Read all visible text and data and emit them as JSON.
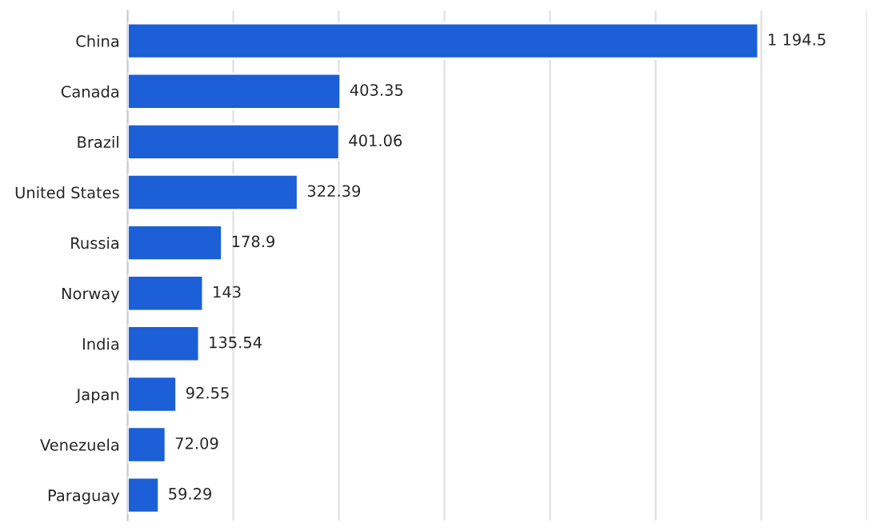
{
  "chart_data": {
    "type": "bar",
    "orientation": "horizontal",
    "categories": [
      "China",
      "Canada",
      "Brazil",
      "United States",
      "Russia",
      "Norway",
      "India",
      "Japan",
      "Venezuela",
      "Paraguay"
    ],
    "values": [
      1194.5,
      403.35,
      401.06,
      322.39,
      178.9,
      143,
      135.54,
      92.55,
      72.09,
      59.29
    ],
    "value_labels": [
      "1 194.5",
      "403.35",
      "401.06",
      "322.39",
      "178.9",
      "143",
      "135.54",
      "92.55",
      "72.09",
      "59.29"
    ],
    "color": "#1c5fd6",
    "xlim": [
      0,
      1400
    ],
    "xticks": [
      {
        "value": 0,
        "label": null
      },
      {
        "value": 200,
        "label": null
      },
      {
        "value": 400,
        "label": null
      },
      {
        "value": 600,
        "label": null
      },
      {
        "value": 800,
        "label": null
      },
      {
        "value": 1000,
        "label": null
      },
      {
        "value": 1200,
        "label": null
      },
      {
        "value": 1400,
        "label": null
      }
    ],
    "grid": "x",
    "tick_labels": "y",
    "legend": false
  }
}
